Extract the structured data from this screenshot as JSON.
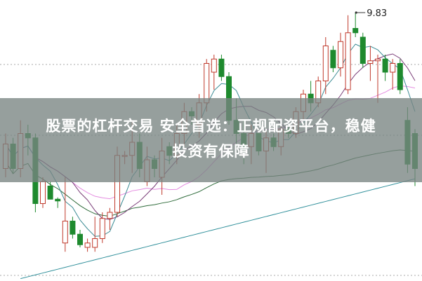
{
  "banner": {
    "line1": "股票的杠杆交易 安全首选：正规配资平台，稳健",
    "line2": "投资有保障"
  },
  "chart_data": {
    "type": "candlestick",
    "annotation": {
      "label": "9.83",
      "candle_index": 47
    },
    "grid": "dotted horizontal",
    "colors": {
      "up": "#c0392b",
      "down": "#1e8a2e",
      "ma5": "#3c8c95",
      "ma10": "#7a3d78",
      "ma20": "#e48be0",
      "ma60": "#2e6b3a",
      "ma120": "#2f8f9a"
    },
    "candles": [
      [
        8.05,
        8.45,
        7.95,
        8.33
      ],
      [
        8.33,
        8.4,
        8.0,
        8.05
      ],
      [
        8.05,
        8.6,
        7.95,
        8.45
      ],
      [
        8.45,
        8.55,
        8.2,
        8.4
      ],
      [
        8.4,
        8.45,
        7.55,
        7.65
      ],
      [
        7.65,
        7.95,
        7.6,
        7.9
      ],
      [
        7.85,
        7.9,
        7.7,
        7.7
      ],
      [
        7.7,
        7.72,
        7.6,
        7.68
      ],
      [
        7.2,
        7.95,
        7.1,
        7.45
      ],
      [
        7.45,
        7.5,
        7.25,
        7.3
      ],
      [
        7.3,
        7.35,
        7.15,
        7.18
      ],
      [
        7.15,
        7.25,
        7.1,
        7.2
      ],
      [
        7.15,
        7.5,
        7.1,
        7.25
      ],
      [
        7.25,
        7.55,
        7.2,
        7.48
      ],
      [
        7.48,
        7.6,
        7.35,
        7.55
      ],
      [
        7.55,
        8.3,
        7.5,
        8.2
      ],
      [
        8.2,
        8.25,
        8.1,
        8.2
      ],
      [
        8.2,
        8.6,
        8.0,
        8.35
      ],
      [
        8.35,
        8.45,
        7.95,
        8.05
      ],
      [
        7.9,
        8.3,
        7.85,
        8.15
      ],
      [
        8.15,
        8.2,
        7.95,
        8.05
      ],
      [
        7.95,
        8.4,
        7.75,
        8.25
      ],
      [
        8.3,
        8.35,
        8.1,
        8.2
      ],
      [
        8.2,
        8.55,
        8.1,
        8.45
      ],
      [
        8.45,
        8.8,
        8.3,
        8.7
      ],
      [
        8.7,
        8.75,
        8.55,
        8.65
      ],
      [
        8.55,
        8.9,
        8.4,
        8.8
      ],
      [
        8.8,
        9.3,
        8.7,
        9.25
      ],
      [
        9.15,
        9.35,
        8.95,
        9.3
      ],
      [
        9.3,
        9.35,
        9.05,
        9.1
      ],
      [
        9.1,
        9.15,
        8.55,
        8.6
      ],
      [
        8.6,
        8.85,
        8.3,
        8.45
      ],
      [
        8.45,
        8.6,
        8.1,
        8.3
      ],
      [
        8.3,
        8.55,
        8.1,
        8.45
      ],
      [
        8.45,
        8.5,
        8.2,
        8.25
      ],
      [
        8.25,
        8.5,
        8.0,
        8.4
      ],
      [
        8.4,
        8.45,
        8.25,
        8.3
      ],
      [
        8.3,
        8.6,
        8.2,
        8.5
      ],
      [
        8.5,
        8.55,
        8.4,
        8.45
      ],
      [
        8.45,
        8.75,
        8.4,
        8.7
      ],
      [
        8.7,
        8.95,
        8.6,
        8.9
      ],
      [
        8.9,
        9.05,
        8.7,
        8.8
      ],
      [
        8.8,
        9.1,
        8.75,
        9.05
      ],
      [
        9.05,
        9.55,
        8.9,
        9.45
      ],
      [
        9.4,
        9.45,
        9.15,
        9.2
      ],
      [
        9.2,
        9.6,
        9.1,
        9.5
      ],
      [
        8.95,
        9.8,
        8.9,
        9.6
      ],
      [
        9.65,
        9.83,
        9.55,
        9.6
      ],
      [
        9.55,
        9.6,
        9.2,
        9.25
      ],
      [
        9.25,
        9.45,
        9.05,
        9.28
      ],
      [
        9.28,
        9.35,
        8.8,
        9.3
      ],
      [
        9.3,
        9.35,
        9.05,
        9.15
      ],
      [
        9.15,
        9.3,
        8.95,
        9.25
      ],
      [
        9.25,
        9.3,
        8.9,
        8.95
      ],
      [
        8.6,
        8.75,
        8.0,
        8.1
      ],
      [
        8.45,
        8.5,
        7.85,
        8.05
      ]
    ]
  }
}
